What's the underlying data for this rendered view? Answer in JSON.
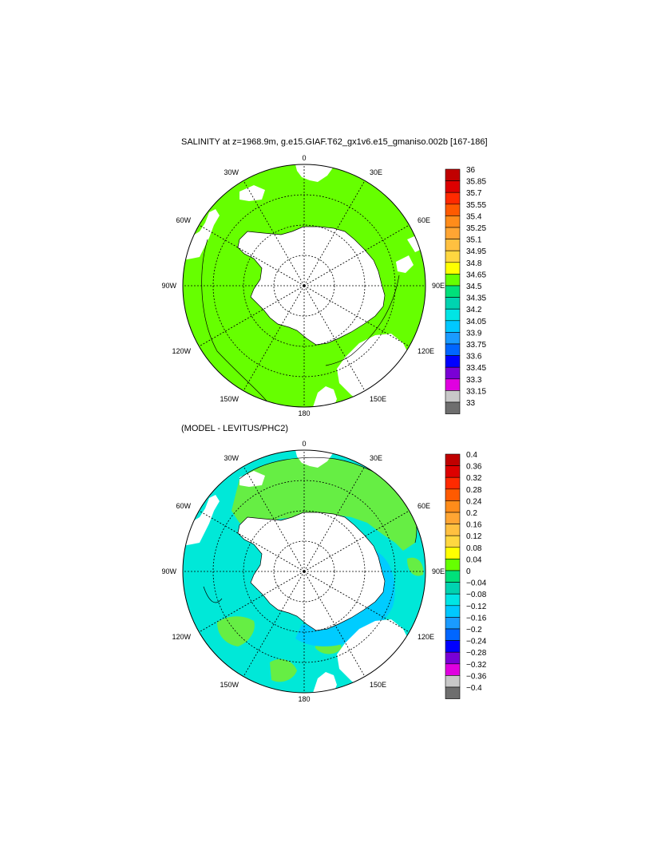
{
  "panels": [
    {
      "title": "SALINITY at z=1968.9m, g.e15.GIAF.T62_gx1v6.e15_gmaniso.002b [167-186]",
      "lon_labels": [
        "0",
        "30E",
        "60E",
        "90E",
        "120E",
        "150E",
        "180",
        "150W",
        "120W",
        "90W",
        "60W",
        "30W"
      ],
      "colorbar_labels": [
        "36",
        "35.85",
        "35.7",
        "35.55",
        "35.4",
        "35.25",
        "35.1",
        "34.95",
        "34.8",
        "34.65",
        "34.5",
        "34.35",
        "34.2",
        "34.05",
        "33.9",
        "33.75",
        "33.6",
        "33.45",
        "33.3",
        "33.15",
        "33"
      ]
    },
    {
      "title": "(MODEL - LEVITUS/PHC2)",
      "lon_labels": [
        "0",
        "30E",
        "60E",
        "90E",
        "120E",
        "150E",
        "180",
        "150W",
        "120W",
        "90W",
        "60W",
        "30W"
      ],
      "colorbar_labels": [
        "0.4",
        "0.36",
        "0.32",
        "0.28",
        "0.24",
        "0.2",
        "0.16",
        "0.12",
        "0.08",
        "0.04",
        "0",
        "−0.04",
        "−0.08",
        "−0.12",
        "−0.16",
        "−0.2",
        "−0.24",
        "−0.28",
        "−0.32",
        "−0.36",
        "−0.4"
      ]
    }
  ],
  "colors": {
    "scale": [
      "#c00000",
      "#dd0000",
      "#ff2a00",
      "#ff5a00",
      "#ff8c1a",
      "#ffa533",
      "#ffc040",
      "#ffd740",
      "#ffff00",
      "#66ff00",
      "#00e07a",
      "#00d3b0",
      "#00e5e5",
      "#00c8ff",
      "#1a9bff",
      "#0066ff",
      "#0000ff",
      "#7a00d6",
      "#e000e0",
      "#c8c8c8",
      "#6e6e6e"
    ],
    "field_main": "#66ff00",
    "anomaly_cyan": "#00e8d8",
    "anomaly_green": "#66ee44",
    "anomaly_deep": "#00ccff",
    "land": "#ffffff"
  },
  "icons": {
    "colorbar": "stacked-color-boxes",
    "projection": "south-polar-stereographic"
  }
}
